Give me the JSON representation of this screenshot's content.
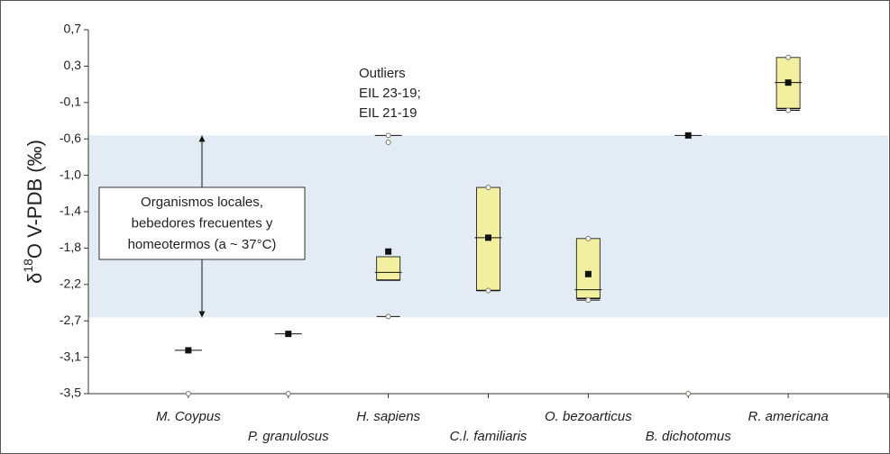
{
  "chart_data": {
    "type": "box",
    "ylabel": {
      "symbol": "δ",
      "superscript": "18",
      "text": "O V-PDB (‰)"
    },
    "ylim": [
      -3.5,
      0.7
    ],
    "yticks": [
      {
        "value": 0.7,
        "label": "0,7"
      },
      {
        "value": 0.28,
        "label": "0,3"
      },
      {
        "value": -0.14,
        "label": "-0,1"
      },
      {
        "value": -0.56,
        "label": "-0,6"
      },
      {
        "value": -0.98,
        "label": "-1,0"
      },
      {
        "value": -1.4,
        "label": "-1,4"
      },
      {
        "value": -1.82,
        "label": "-1,8"
      },
      {
        "value": -2.24,
        "label": "-2,2"
      },
      {
        "value": -2.66,
        "label": "-2,7"
      },
      {
        "value": -3.08,
        "label": "-3,1"
      },
      {
        "value": -3.5,
        "label": "-3,5"
      }
    ],
    "categories": [
      "M. Coypus",
      "P. granulosus",
      "H. sapiens",
      "C.l. familiaris",
      "O. bezoarticus",
      "B. dichotomus",
      "R. americana"
    ],
    "boxes": [
      {
        "median": -3.0,
        "mean": -3.0,
        "min": -3.5
      },
      {
        "median": -2.81,
        "mean": -2.81,
        "min": -3.5
      },
      {
        "q1": -2.19,
        "q3": -1.92,
        "median": -2.1,
        "mean": -1.86,
        "min": -2.61,
        "outliers": [
          -0.52,
          -0.6
        ]
      },
      {
        "q1": -2.31,
        "q3": -1.12,
        "median": -1.7,
        "mean": -1.7,
        "min": -2.31,
        "max": -1.12
      },
      {
        "q1": -2.4,
        "q3": -1.71,
        "median": -2.3,
        "mean": -2.12,
        "min": -2.42,
        "max": -1.71
      },
      {
        "median": -0.52,
        "mean": -0.52,
        "min": -3.5
      },
      {
        "q1": -0.21,
        "q3": 0.38,
        "median": 0.09,
        "mean": 0.09,
        "min": -0.23,
        "max": 0.38
      }
    ],
    "band": [
      -0.52,
      -2.62
    ],
    "band_color": "#e3ebf5",
    "box_color": "#f2ef9e",
    "band_note": [
      "Organismos locales,",
      "bebedores frecuentes  y",
      "homeotermos (a ~ 37°C)"
    ],
    "outlier_note": [
      "Outliers",
      "EIL 23-19;",
      "EIL 21-19"
    ]
  }
}
